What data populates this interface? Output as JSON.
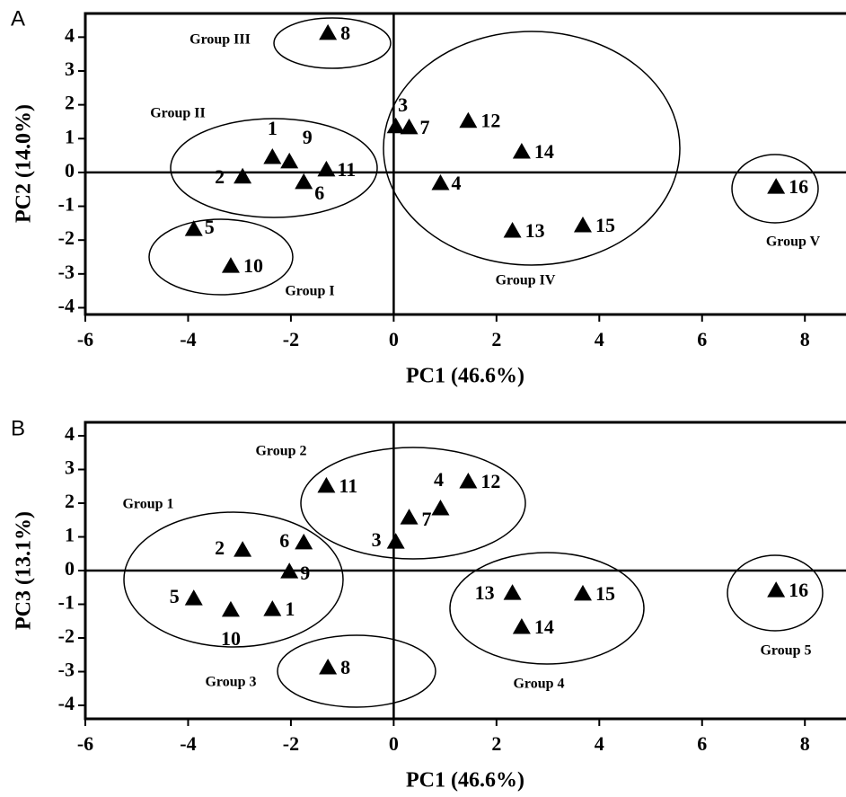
{
  "chart_data": [
    {
      "type": "scatter",
      "panel": "A",
      "x_label": "PC1 (46.6%)",
      "y_label": "PC2 (14.0%)",
      "labels": [
        "1",
        "2",
        "3",
        "4",
        "5",
        "6",
        "7",
        "8",
        "9",
        "10",
        "11",
        "12",
        "13",
        "14",
        "15",
        "16"
      ],
      "x": [
        -2.36,
        -2.94,
        0.04,
        0.91,
        -3.89,
        -1.75,
        0.3,
        -1.28,
        -2.03,
        -3.17,
        -1.31,
        1.45,
        2.31,
        2.49,
        3.68,
        7.44
      ],
      "values": [
        0.45,
        -0.13,
        1.36,
        -0.32,
        -1.68,
        -0.29,
        1.33,
        4.12,
        0.32,
        -2.77,
        0.08,
        1.52,
        -1.73,
        0.61,
        -1.57,
        -0.43
      ],
      "color": "#000000",
      "annotations": [
        "Group III",
        "Group II",
        "Group I",
        "Group IV",
        "Group V"
      ],
      "xlim": [
        -6,
        8.8
      ],
      "xticks": [
        -6,
        -4,
        -2,
        0,
        2,
        4,
        6,
        8
      ],
      "ylim": [
        -4.2,
        4.7
      ],
      "yticks": [
        -4,
        -3,
        -2,
        -1,
        0,
        1,
        2,
        3,
        4
      ]
    },
    {
      "type": "scatter",
      "panel": "B",
      "x_label": "PC1 (46.6%)",
      "y_label": "PC3 (13.1%)",
      "labels": [
        "1",
        "2",
        "3",
        "4",
        "5",
        "6",
        "7",
        "8",
        "9",
        "10",
        "11",
        "12",
        "13",
        "14",
        "15",
        "16"
      ],
      "x": [
        -2.36,
        -2.94,
        0.04,
        0.91,
        -3.89,
        -1.75,
        0.3,
        -1.28,
        -2.03,
        -3.17,
        -1.31,
        1.45,
        2.31,
        2.49,
        3.68,
        7.44
      ],
      "values": [
        -1.15,
        0.61,
        0.85,
        1.84,
        -0.83,
        0.83,
        1.57,
        -2.88,
        -0.03,
        -1.17,
        2.51,
        2.64,
        -0.67,
        -1.68,
        -0.69,
        -0.59
      ],
      "color": "#000000",
      "annotations": [
        "Group 2",
        "Group 1",
        "Group 3",
        "Group 4",
        "Group 5"
      ],
      "xlim": [
        -6,
        8.8
      ],
      "xticks": [
        -6,
        -4,
        -2,
        0,
        2,
        4,
        6,
        8
      ],
      "ylim": [
        -4.4,
        4.4
      ],
      "yticks": [
        -4,
        -3,
        -2,
        -1,
        0,
        1,
        2,
        3,
        4
      ]
    }
  ]
}
